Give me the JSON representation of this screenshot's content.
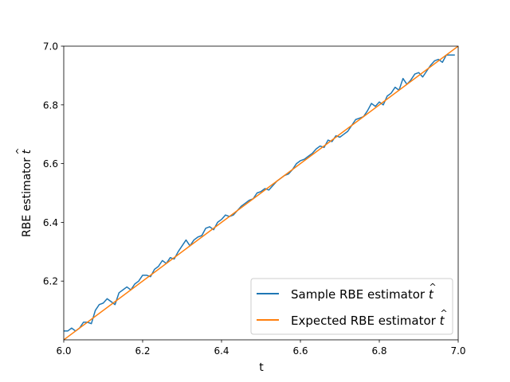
{
  "chart_data": {
    "type": "line",
    "title": "",
    "xlabel": "t",
    "ylabel_text": "RBE estimator ",
    "ylabel_symbol": "t",
    "ylabel_accent": "^",
    "xlim": [
      6.0,
      7.0
    ],
    "ylim": [
      6.0,
      7.0
    ],
    "xticks": [
      6.0,
      6.2,
      6.4,
      6.6,
      6.8,
      7.0
    ],
    "xtick_labels": [
      "6.0",
      "6.2",
      "6.4",
      "6.6",
      "6.8",
      "7.0"
    ],
    "yticks": [
      6.2,
      6.4,
      6.6,
      6.8,
      7.0
    ],
    "ytick_labels": [
      "6.2",
      "6.4",
      "6.6",
      "6.8",
      "7.0"
    ],
    "grid": false,
    "legend_position": "bottom-right",
    "series": [
      {
        "name_text": "Sample RBE estimator ",
        "name_symbol": "t",
        "name_accent": "^",
        "color": "#1f77b4",
        "x": [
          6.0,
          6.01,
          6.02,
          6.03,
          6.04,
          6.05,
          6.06,
          6.07,
          6.08,
          6.09,
          6.1,
          6.11,
          6.12,
          6.13,
          6.14,
          6.15,
          6.16,
          6.17,
          6.18,
          6.19,
          6.2,
          6.21,
          6.22,
          6.23,
          6.24,
          6.25,
          6.26,
          6.27,
          6.28,
          6.29,
          6.3,
          6.31,
          6.32,
          6.33,
          6.34,
          6.35,
          6.36,
          6.37,
          6.38,
          6.39,
          6.4,
          6.41,
          6.42,
          6.43,
          6.44,
          6.45,
          6.46,
          6.47,
          6.48,
          6.49,
          6.5,
          6.51,
          6.52,
          6.53,
          6.54,
          6.55,
          6.56,
          6.57,
          6.58,
          6.59,
          6.6,
          6.61,
          6.62,
          6.63,
          6.64,
          6.65,
          6.66,
          6.67,
          6.68,
          6.69,
          6.7,
          6.71,
          6.72,
          6.73,
          6.74,
          6.75,
          6.76,
          6.77,
          6.78,
          6.79,
          6.8,
          6.81,
          6.82,
          6.83,
          6.84,
          6.85,
          6.86,
          6.87,
          6.88,
          6.89,
          6.9,
          6.91,
          6.92,
          6.93,
          6.94,
          6.95,
          6.96,
          6.97,
          6.98,
          6.99
        ],
        "values": [
          6.03,
          6.03,
          6.04,
          6.03,
          6.04,
          6.06,
          6.06,
          6.055,
          6.1,
          6.12,
          6.125,
          6.14,
          6.13,
          6.12,
          6.16,
          6.17,
          6.18,
          6.17,
          6.19,
          6.2,
          6.22,
          6.22,
          6.215,
          6.24,
          6.25,
          6.27,
          6.26,
          6.28,
          6.275,
          6.3,
          6.32,
          6.34,
          6.32,
          6.34,
          6.35,
          6.355,
          6.38,
          6.385,
          6.375,
          6.4,
          6.41,
          6.425,
          6.42,
          6.425,
          6.44,
          6.455,
          6.465,
          6.475,
          6.48,
          6.5,
          6.505,
          6.515,
          6.51,
          6.525,
          6.54,
          6.55,
          6.56,
          6.565,
          6.58,
          6.6,
          6.61,
          6.615,
          6.625,
          6.635,
          6.65,
          6.66,
          6.655,
          6.68,
          6.675,
          6.695,
          6.69,
          6.7,
          6.71,
          6.73,
          6.75,
          6.755,
          6.76,
          6.78,
          6.805,
          6.795,
          6.81,
          6.8,
          6.83,
          6.84,
          6.86,
          6.85,
          6.89,
          6.87,
          6.885,
          6.905,
          6.91,
          6.895,
          6.915,
          6.935,
          6.95,
          6.955,
          6.945,
          6.97,
          6.97,
          6.97
        ]
      },
      {
        "name_text": "Expected RBE estimator ",
        "name_symbol": "t",
        "name_accent": "^",
        "color": "#ff7f0e",
        "x": [
          6.0,
          7.0
        ],
        "values": [
          6.0,
          7.0
        ]
      }
    ]
  }
}
